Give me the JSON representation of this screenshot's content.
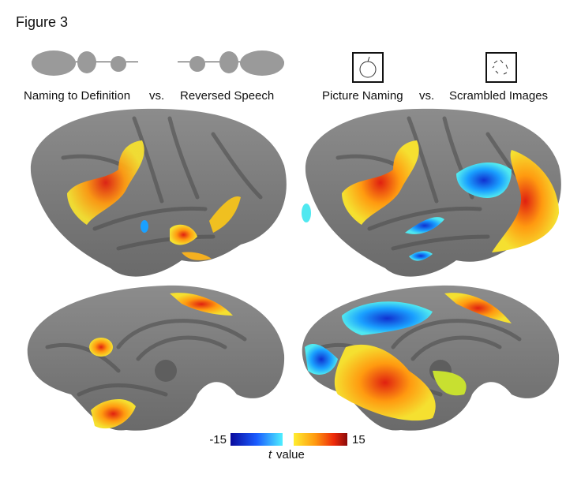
{
  "figure": {
    "title": "Figure 3",
    "left_panel": {
      "condition": "Naming to Definition",
      "versus": "vs.",
      "control": "Reversed Speech"
    },
    "right_panel": {
      "condition": "Picture Naming",
      "versus": "vs.",
      "control": "Scrambled Images"
    },
    "colorbar": {
      "min_label": "-15",
      "max_label": "15",
      "label_italic": "t",
      "label": "value"
    }
  }
}
